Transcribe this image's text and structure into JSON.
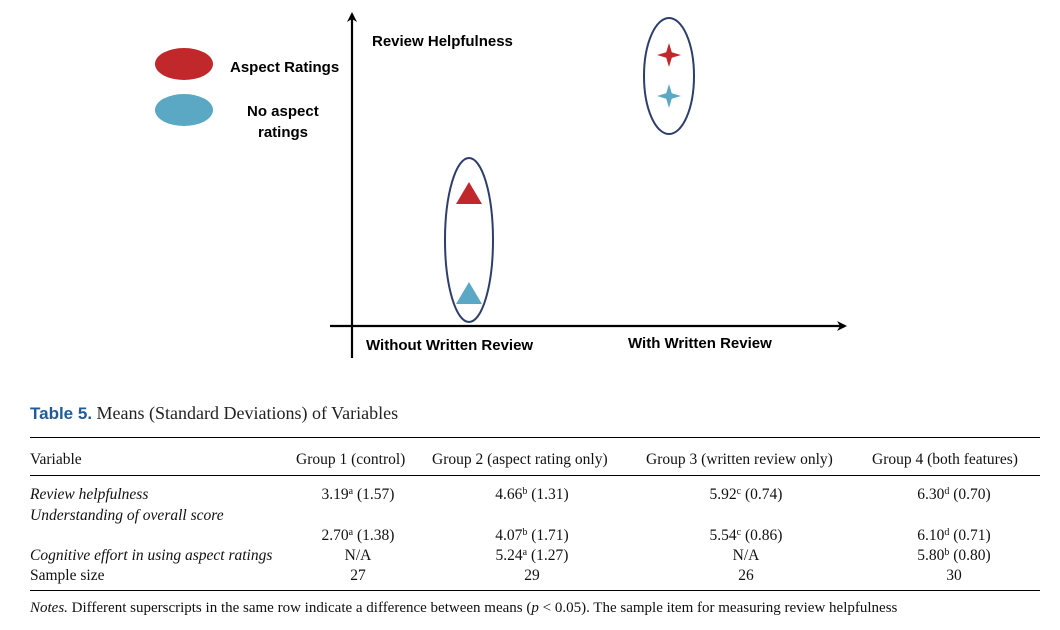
{
  "chart_data": {
    "type": "scatter",
    "title": "",
    "xlabel": "",
    "ylabel": "Review Helpfulness",
    "categories": [
      "Without Written Review",
      "With Written Review"
    ],
    "series": [
      {
        "name": "Aspect Ratings",
        "values": [
          4.66,
          6.3
        ],
        "color": "#c0282b",
        "markers": [
          "triangle",
          "star4"
        ]
      },
      {
        "name": "No aspect ratings",
        "values": [
          3.19,
          5.92
        ],
        "color": "#5ba8c4",
        "markers": [
          "triangle",
          "star4"
        ]
      }
    ],
    "legend_position": "top-left",
    "grid": false
  },
  "legend": {
    "aspect_label": "Aspect Ratings",
    "no_aspect_label_line1": "No aspect",
    "no_aspect_label_line2": "ratings"
  },
  "table": {
    "label": "Table 5.",
    "title": "Means (Standard Deviations) of Variables",
    "headers": [
      "Variable",
      "Group 1 (control)",
      "Group 2 (aspect rating only)",
      "Group 3 (written review only)",
      "Group 4 (both features)"
    ],
    "rows": [
      {
        "label": "Review helpfulness",
        "cells": [
          {
            "v": "3.19",
            "s": "a",
            "sd": "(1.57)"
          },
          {
            "v": "4.66",
            "s": "b",
            "sd": "(1.31)"
          },
          {
            "v": "5.92",
            "s": "c",
            "sd": "(0.74)"
          },
          {
            "v": "6.30",
            "s": "d",
            "sd": "(0.70)"
          }
        ]
      },
      {
        "label": "Understanding of overall score",
        "cells": [
          {
            "v": "2.70",
            "s": "a",
            "sd": "(1.38)"
          },
          {
            "v": "4.07",
            "s": "b",
            "sd": "(1.71)"
          },
          {
            "v": "5.54",
            "s": "c",
            "sd": "(0.86)"
          },
          {
            "v": "6.10",
            "s": "d",
            "sd": "(0.71)"
          }
        ]
      },
      {
        "label": "Cognitive effort in using aspect ratings",
        "cells": [
          {
            "v": "N/A",
            "s": "",
            "sd": ""
          },
          {
            "v": "5.24",
            "s": "a",
            "sd": "(1.27)"
          },
          {
            "v": "N/A",
            "s": "",
            "sd": ""
          },
          {
            "v": "5.80",
            "s": "b",
            "sd": "(0.80)"
          }
        ]
      },
      {
        "label": "Sample size",
        "cells": [
          {
            "v": "27",
            "s": "",
            "sd": ""
          },
          {
            "v": "29",
            "s": "",
            "sd": ""
          },
          {
            "v": "26",
            "s": "",
            "sd": ""
          },
          {
            "v": "30",
            "s": "",
            "sd": ""
          }
        ]
      }
    ]
  },
  "notes": {
    "label": "Notes.",
    "text_before": " Different superscripts in the same row indicate a difference between means (",
    "p": "p",
    "text_after": " < 0.05). The sample item for measuring review helpfulness"
  }
}
